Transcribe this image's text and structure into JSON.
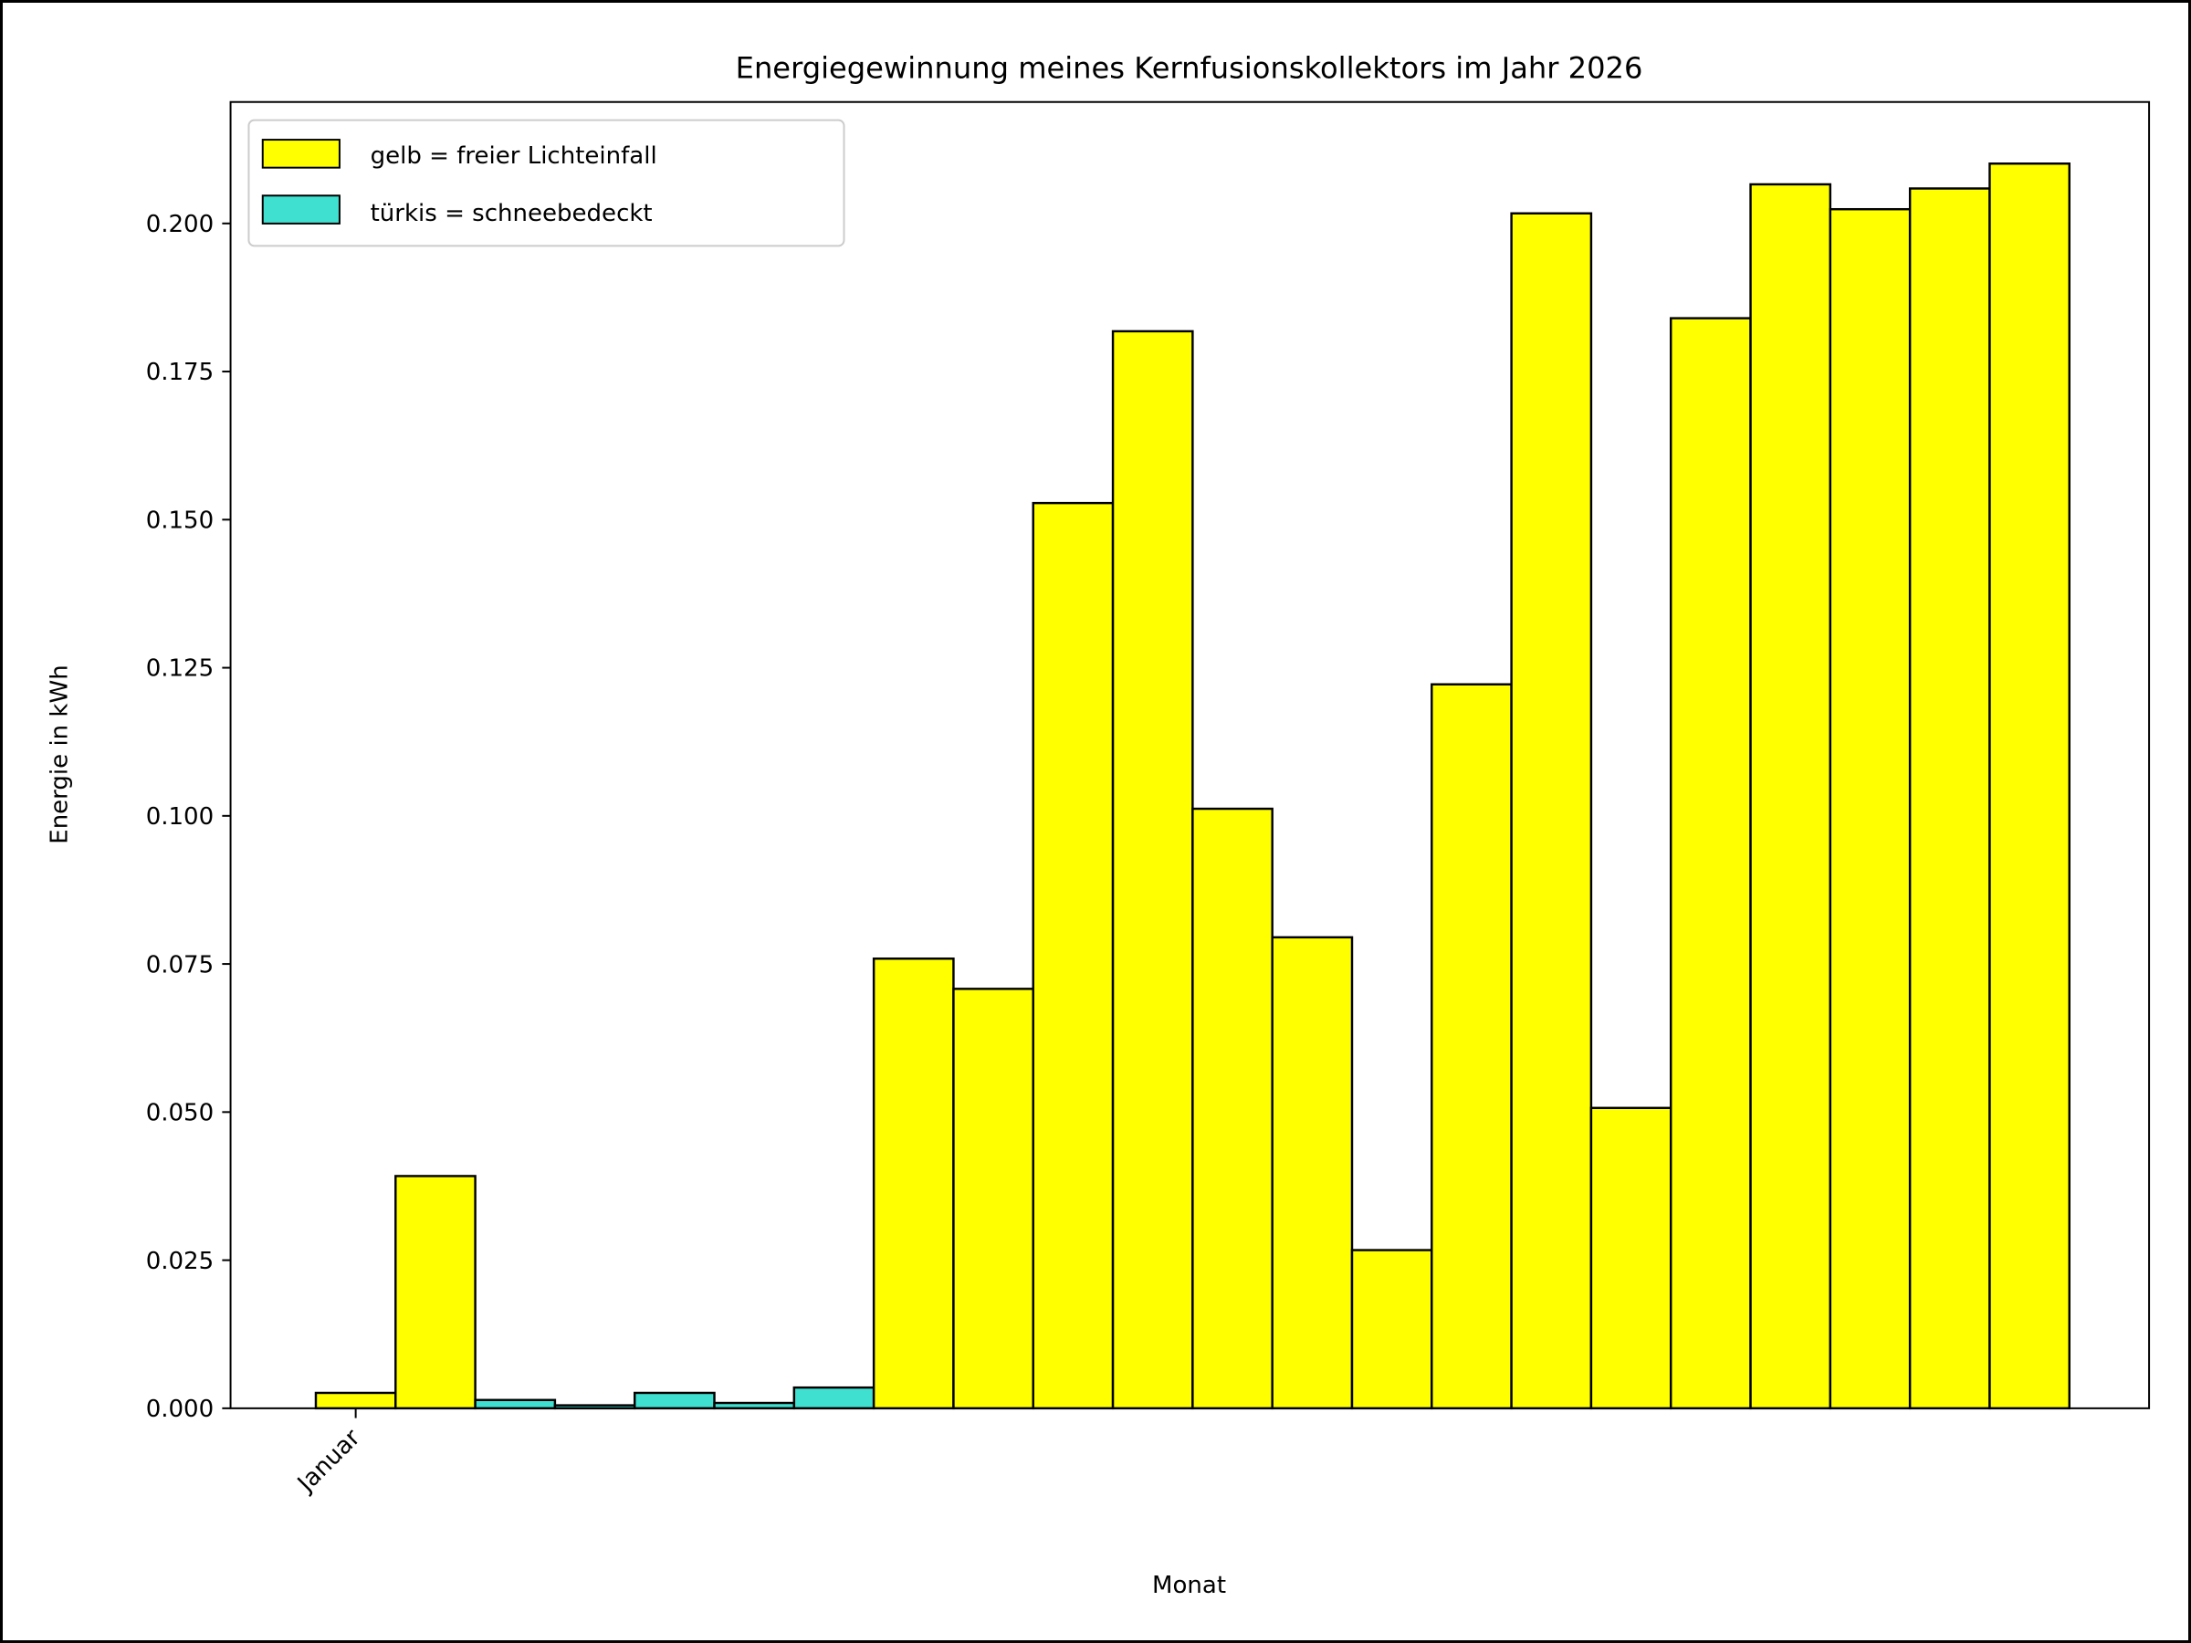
{
  "chart_data": {
    "type": "bar",
    "title": "Energiegewinnung meines Kernfusionskollektors im Jahr 2026",
    "xlabel": "Monat",
    "ylabel": "Energie in kWh",
    "x_tick_labels": [
      {
        "index": 0,
        "label": "Januar"
      }
    ],
    "ylim": [
      0,
      0.2205
    ],
    "xlim": [
      -1.57,
      22.5
    ],
    "y_ticks": [
      "0.000",
      "0.025",
      "0.050",
      "0.075",
      "0.100",
      "0.125",
      "0.150",
      "0.175",
      "0.200"
    ],
    "grid": false,
    "legend": {
      "placement": "top-left",
      "entries": [
        {
          "label": "gelb = freier Lichteinfall",
          "color": "#ffff00"
        },
        {
          "label": "türkis = schneebedeckt",
          "color": "#40e0d0"
        }
      ]
    },
    "values": [
      0.0026,
      0.0392,
      0.0014,
      0.0005,
      0.0026,
      0.0009,
      0.0035,
      0.0759,
      0.0708,
      0.1528,
      0.1818,
      0.1012,
      0.0795,
      0.0267,
      0.1222,
      0.2017,
      0.0507,
      0.184,
      0.2066,
      0.2024,
      0.2059,
      0.2101
    ],
    "colors": [
      "#ffff00",
      "#ffff00",
      "#40e0d0",
      "#40e0d0",
      "#40e0d0",
      "#40e0d0",
      "#40e0d0",
      "#ffff00",
      "#ffff00",
      "#ffff00",
      "#ffff00",
      "#ffff00",
      "#ffff00",
      "#ffff00",
      "#ffff00",
      "#ffff00",
      "#ffff00",
      "#ffff00",
      "#ffff00",
      "#ffff00",
      "#ffff00",
      "#ffff00"
    ]
  }
}
